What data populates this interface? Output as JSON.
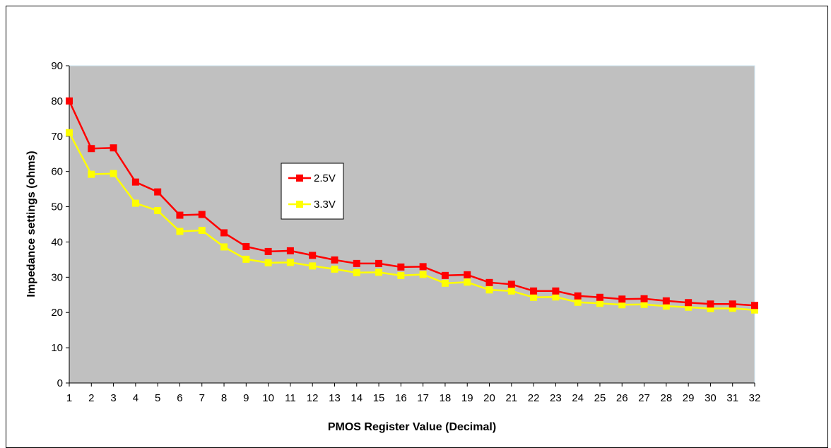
{
  "chart_data": {
    "type": "line",
    "title": "",
    "xlabel": "PMOS Register Value (Decimal)",
    "ylabel": "Impedance settings (ohms)",
    "ylim": [
      0,
      90
    ],
    "yticks": [
      0,
      10,
      20,
      30,
      40,
      50,
      60,
      70,
      80,
      90
    ],
    "x": [
      1,
      2,
      3,
      4,
      5,
      6,
      7,
      8,
      9,
      10,
      11,
      12,
      13,
      14,
      15,
      16,
      17,
      18,
      19,
      20,
      21,
      22,
      23,
      24,
      25,
      26,
      27,
      28,
      29,
      30,
      31,
      32
    ],
    "x_labels": [
      "1",
      "2",
      "3",
      "4",
      "5",
      "6",
      "7",
      "8",
      "9",
      "10",
      "11",
      "12",
      "13",
      "14",
      "15",
      "16",
      "17",
      "18",
      "19",
      "20",
      "21",
      "22",
      "23",
      "24",
      "25",
      "26",
      "27",
      "28",
      "29",
      "30",
      "31",
      "32"
    ],
    "grid": false,
    "legend_position": "center-left",
    "plot_background": "#c0c0c0",
    "series": [
      {
        "name": "2.5V",
        "color": "#ff0000",
        "marker_color": "#ff0000",
        "values": [
          80.0,
          66.5,
          66.7,
          57.0,
          54.2,
          47.6,
          47.8,
          42.6,
          38.7,
          37.3,
          37.5,
          36.2,
          34.9,
          33.9,
          33.9,
          32.9,
          33.0,
          30.5,
          30.7,
          28.5,
          28.0,
          26.1,
          26.1,
          24.7,
          24.3,
          23.8,
          23.9,
          23.3,
          22.8,
          22.4,
          22.4,
          22.0
        ]
      },
      {
        "name": "3.3V",
        "color": "#ffff00",
        "marker_color": "#ffff00",
        "values": [
          71.0,
          59.2,
          59.4,
          51.0,
          48.9,
          43.0,
          43.3,
          38.6,
          35.1,
          34.1,
          34.2,
          33.2,
          32.3,
          31.3,
          31.4,
          30.5,
          30.8,
          28.3,
          28.6,
          26.4,
          26.1,
          24.3,
          24.4,
          22.9,
          22.6,
          22.2,
          22.3,
          21.8,
          21.5,
          21.1,
          21.2,
          20.7
        ]
      }
    ]
  }
}
